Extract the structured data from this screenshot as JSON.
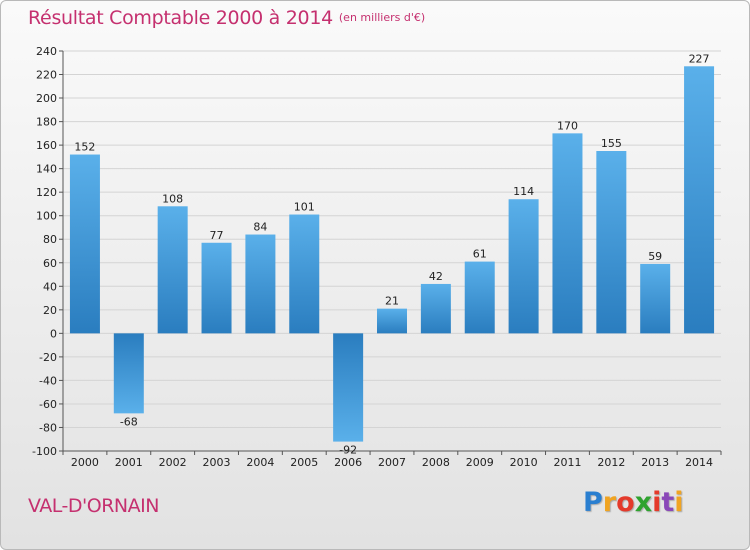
{
  "chart_data": {
    "type": "bar",
    "title": "Résultat Comptable 2000 à 2014",
    "subtitle": "(en milliers d'€)",
    "categories": [
      "2000",
      "2001",
      "2002",
      "2003",
      "2004",
      "2005",
      "2006",
      "2007",
      "2008",
      "2009",
      "2010",
      "2011",
      "2012",
      "2013",
      "2014"
    ],
    "values": [
      152,
      -68,
      108,
      77,
      84,
      101,
      -92,
      21,
      42,
      61,
      114,
      170,
      155,
      59,
      227
    ],
    "ylim": [
      -100,
      240
    ],
    "yticks": [
      240,
      220,
      200,
      180,
      160,
      140,
      120,
      100,
      80,
      60,
      40,
      20,
      0,
      -20,
      -40,
      -60,
      -80,
      -100
    ],
    "grid": true,
    "bar_color": "#4b9fdc",
    "xlabel": "",
    "ylabel": ""
  },
  "commune": "VAL-D'ORNAIN",
  "brand": {
    "letters": [
      "P",
      "r",
      "o",
      "x",
      "i",
      "t",
      "i"
    ],
    "colors": [
      "#2a7fd0",
      "#f0a422",
      "#e43a2b",
      "#2fa32f",
      "#e43a2b",
      "#8a48b8",
      "#f0a422"
    ]
  }
}
